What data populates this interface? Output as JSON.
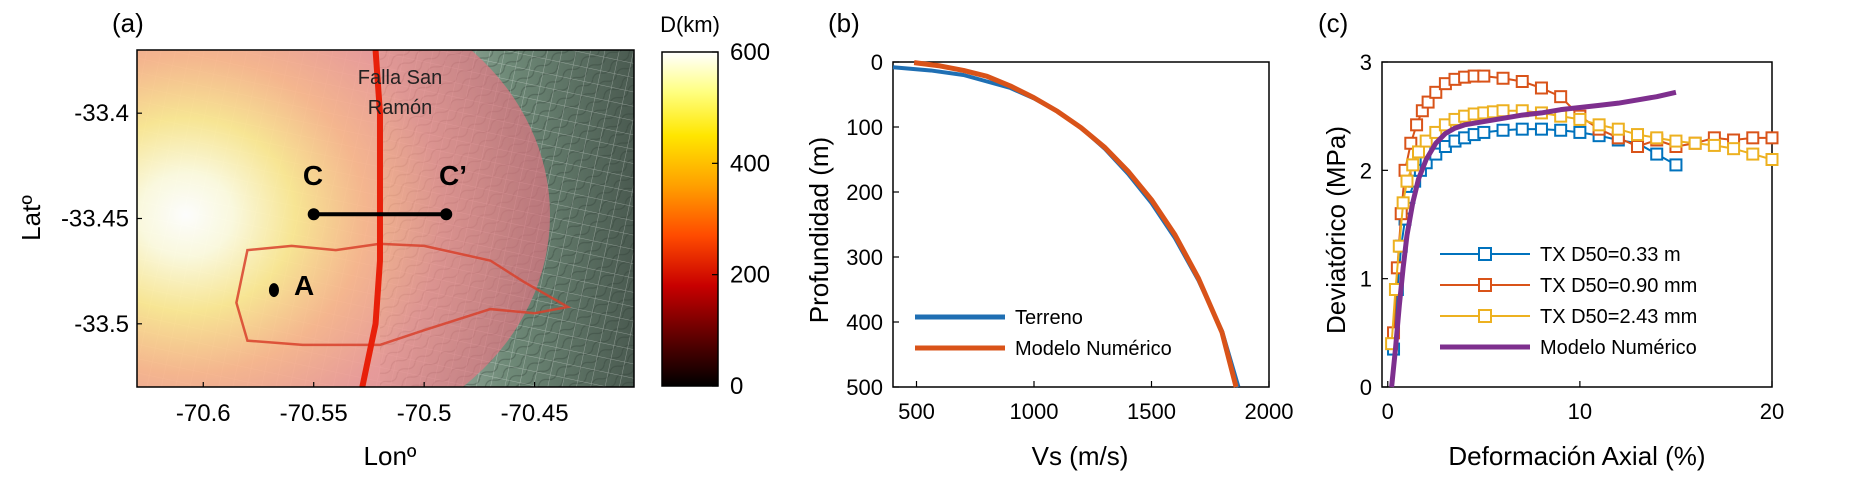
{
  "chart_data": [
    {
      "panel_label": "(a)",
      "type": "heatmap",
      "xlabel": "Lonº",
      "ylabel": "Latº",
      "xlim": [
        -70.63,
        -70.405
      ],
      "ylim": [
        -33.53,
        -33.37
      ],
      "xticks": [
        "-70.6",
        "-70.55",
        "-70.5",
        "-70.45"
      ],
      "xtick_values": [
        -70.6,
        -70.55,
        -70.5,
        -70.45
      ],
      "yticks": [
        "-33.4",
        "-33.45",
        "-33.5"
      ],
      "ytick_values": [
        -33.4,
        -33.45,
        -33.5
      ],
      "colorbar": {
        "label": "D(km)",
        "range": [
          0,
          600
        ],
        "ticks": [
          "0",
          "200",
          "400",
          "600"
        ],
        "tick_values": [
          0,
          200,
          400,
          600
        ],
        "colors": [
          "#000000",
          "#5a0000",
          "#c80000",
          "#ff4b00",
          "#ffa000",
          "#ffe600",
          "#ffff80",
          "#ffffff"
        ]
      },
      "annotations": {
        "fault_name_line1": "Falla San",
        "fault_name_line2": "Ramón",
        "section_start": "C",
        "section_end": "C’",
        "point_a": "A"
      },
      "section_line": {
        "lon": [
          -70.55,
          -70.49
        ],
        "lat": [
          -33.448,
          -33.448
        ]
      },
      "point_a_location": {
        "lon": -70.568,
        "lat": -33.484
      },
      "fault_trace": {
        "lon": [
          -70.522,
          -70.52,
          -70.52,
          -70.52,
          -70.522,
          -70.528
        ],
        "lat": [
          -33.37,
          -33.4,
          -33.44,
          -33.47,
          -33.5,
          -33.53
        ]
      },
      "study_area_polygon": {
        "lon": [
          -70.58,
          -70.56,
          -70.54,
          -70.52,
          -70.5,
          -70.47,
          -70.455,
          -70.435,
          -70.45,
          -70.47,
          -70.5,
          -70.52,
          -70.555,
          -70.58,
          -70.585
        ],
        "lat": [
          -33.465,
          -33.463,
          -33.465,
          -33.462,
          -33.463,
          -33.47,
          -33.48,
          -33.492,
          -33.495,
          -33.493,
          -33.503,
          -33.51,
          -33.51,
          -33.508,
          -33.49
        ]
      }
    },
    {
      "panel_label": "(b)",
      "type": "line",
      "xlabel": "Vs (m/s)",
      "ylabel": "Profundidad (m)",
      "xlim": [
        400,
        2000
      ],
      "ylim": [
        0,
        500
      ],
      "y_reversed": true,
      "xticks": [
        "500",
        "1000",
        "1500",
        "2000"
      ],
      "xtick_values": [
        500,
        1000,
        1500,
        2000
      ],
      "yticks": [
        "0",
        "100",
        "200",
        "300",
        "400",
        "500"
      ],
      "ytick_values": [
        0,
        100,
        200,
        300,
        400,
        500
      ],
      "legend_position": "bottom-left",
      "series": [
        {
          "name": "Terreno",
          "color": "#1f6fb3",
          "x": [
            400,
            560,
            700,
            800,
            900,
            1000,
            1100,
            1200,
            1300,
            1400,
            1500,
            1600,
            1700,
            1800,
            1870
          ],
          "y": [
            8,
            13,
            20,
            30,
            40,
            56,
            76,
            101,
            133,
            172,
            217,
            271,
            336,
            414,
            500
          ]
        },
        {
          "name": "Modelo Numérico",
          "color": "#d95319",
          "x": [
            490,
            600,
            700,
            800,
            900,
            1000,
            1100,
            1200,
            1300,
            1400,
            1500,
            1600,
            1700,
            1800,
            1860
          ],
          "y": [
            1,
            6,
            13,
            22,
            37,
            55,
            76,
            101,
            131,
            168,
            212,
            266,
            333,
            416,
            500
          ]
        }
      ]
    },
    {
      "panel_label": "(c)",
      "type": "line",
      "xlabel": "Deformación Axial (%)",
      "ylabel": "Deviatórico (MPa)",
      "xlim": [
        -0.3,
        20
      ],
      "ylim": [
        0,
        3
      ],
      "xticks": [
        "0",
        "10",
        "20"
      ],
      "xtick_values": [
        0,
        10,
        20
      ],
      "yticks": [
        "0",
        "1",
        "2",
        "3"
      ],
      "ytick_values": [
        0,
        1,
        2,
        3
      ],
      "legend_position": "bottom-center",
      "series": [
        {
          "name": "TX D50=0.33 m",
          "color": "#0072bd",
          "marker": "square",
          "x": [
            0.3,
            0.5,
            0.7,
            0.9,
            1.1,
            1.4,
            1.7,
            2.0,
            2.5,
            3.0,
            3.5,
            4.0,
            4.5,
            5.0,
            6.0,
            7.0,
            8.0,
            9.0,
            10.0,
            11.0,
            12.0,
            13.0,
            14.0,
            15.0
          ],
          "y": [
            0.35,
            0.9,
            1.3,
            1.55,
            1.75,
            1.9,
            2.0,
            2.07,
            2.15,
            2.22,
            2.27,
            2.3,
            2.33,
            2.35,
            2.37,
            2.38,
            2.38,
            2.37,
            2.35,
            2.32,
            2.28,
            2.25,
            2.15,
            2.05
          ]
        },
        {
          "name": "TX D50=0.90 mm",
          "color": "#d95319",
          "marker": "square",
          "x": [
            0.3,
            0.5,
            0.7,
            0.9,
            1.2,
            1.5,
            1.8,
            2.1,
            2.5,
            3.0,
            3.5,
            4.0,
            4.5,
            5.0,
            6.0,
            7.0,
            8.0,
            9.0,
            10.0,
            11.0,
            12.0,
            13.0,
            14.0,
            15.0,
            16.0,
            17.0,
            18.0,
            19.0,
            20.0
          ],
          "y": [
            0.5,
            1.1,
            1.6,
            2.0,
            2.25,
            2.42,
            2.55,
            2.63,
            2.72,
            2.8,
            2.84,
            2.86,
            2.87,
            2.87,
            2.85,
            2.82,
            2.76,
            2.68,
            2.5,
            2.38,
            2.3,
            2.22,
            2.28,
            2.22,
            2.25,
            2.3,
            2.28,
            2.3,
            2.3
          ]
        },
        {
          "name": "TX D50=2.43 mm",
          "color": "#edb120",
          "marker": "square",
          "x": [
            0.2,
            0.4,
            0.6,
            0.8,
            1.0,
            1.3,
            1.6,
            2.0,
            2.5,
            3.0,
            3.5,
            4.0,
            4.5,
            5.0,
            5.5,
            6.0,
            7.0,
            8.0,
            9.0,
            10.0,
            11.0,
            12.0,
            13.0,
            14.0,
            15.0,
            16.0,
            17.0,
            18.0,
            19.0,
            20.0
          ],
          "y": [
            0.4,
            0.9,
            1.3,
            1.7,
            1.9,
            2.05,
            2.17,
            2.27,
            2.35,
            2.42,
            2.47,
            2.5,
            2.52,
            2.53,
            2.54,
            2.55,
            2.55,
            2.53,
            2.5,
            2.47,
            2.42,
            2.38,
            2.33,
            2.3,
            2.27,
            2.25,
            2.23,
            2.2,
            2.15,
            2.1
          ]
        },
        {
          "name": "Modelo Numérico",
          "color": "#7e2f8e",
          "marker": "none",
          "x": [
            0.2,
            0.4,
            0.6,
            0.8,
            1.0,
            1.3,
            1.6,
            2.0,
            2.5,
            3.0,
            3.5,
            4.0,
            5.0,
            6.0,
            7.0,
            8.0,
            9.0,
            10.0,
            11.0,
            12.0,
            13.0,
            14.0,
            15.0
          ],
          "y": [
            0.0,
            0.35,
            0.75,
            1.1,
            1.4,
            1.7,
            1.92,
            2.1,
            2.25,
            2.34,
            2.39,
            2.42,
            2.45,
            2.48,
            2.51,
            2.53,
            2.56,
            2.58,
            2.6,
            2.62,
            2.65,
            2.68,
            2.72
          ]
        }
      ]
    }
  ]
}
